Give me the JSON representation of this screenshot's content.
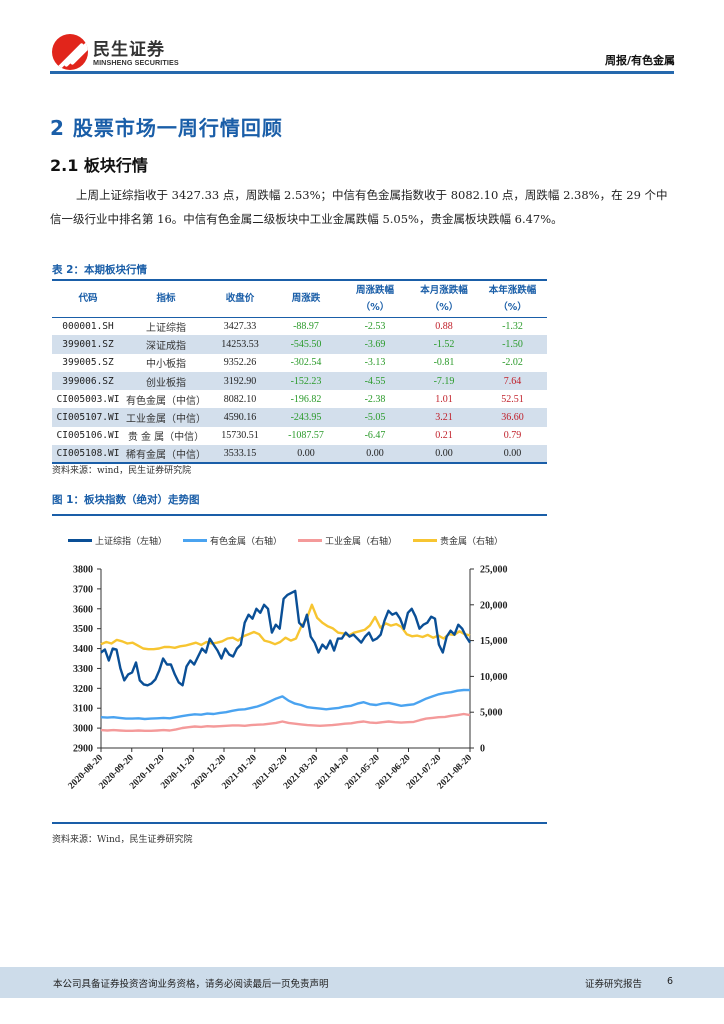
{
  "header": {
    "logo_cn": "民生证券",
    "logo_en": "MINSHENG SECURITIES",
    "right_label": "周报/有色金属"
  },
  "section": {
    "h1": "2 股票市场一周行情回顾",
    "h2": "2.1 板块行情",
    "paragraph": "上周上证综指收于 3427.33 点，周跌幅 2.53%；中信有色金属指数收于 8082.10 点，周跌幅 2.38%，在 29 个中信一级行业中排名第 16。中信有色金属二级板块中工业金属跌幅 5.05%，贵金属板块跌幅 6.47%。"
  },
  "table": {
    "title": "表 2：本期板块行情",
    "headers": [
      "代码",
      "指标",
      "收盘价",
      "周涨跌",
      "周涨跌幅\n（%）",
      "本月涨跌幅\n（%）",
      "本年涨跌幅\n（%）"
    ],
    "rows": [
      {
        "code": "000001.SH",
        "name": "上证综指",
        "close": "3427.33",
        "wchg": "-88.97",
        "wpct": "-2.53",
        "mpct": "0.88",
        "ypct": "-1.32"
      },
      {
        "code": "399001.SZ",
        "name": "深证成指",
        "close": "14253.53",
        "wchg": "-545.50",
        "wpct": "-3.69",
        "mpct": "-1.52",
        "ypct": "-1.50"
      },
      {
        "code": "399005.SZ",
        "name": "中小板指",
        "close": "9352.26",
        "wchg": "-302.54",
        "wpct": "-3.13",
        "mpct": "-0.81",
        "ypct": "-2.02"
      },
      {
        "code": "399006.SZ",
        "name": "创业板指",
        "close": "3192.90",
        "wchg": "-152.23",
        "wpct": "-4.55",
        "mpct": "-7.19",
        "ypct": "7.64"
      },
      {
        "code": "CI005003.WI",
        "name": "有色金属（中信）",
        "close": "8082.10",
        "wchg": "-196.82",
        "wpct": "-2.38",
        "mpct": "1.01",
        "ypct": "52.51"
      },
      {
        "code": "CI005107.WI",
        "name": "工业金属（中信）",
        "close": "4590.16",
        "wchg": "-243.95",
        "wpct": "-5.05",
        "mpct": "3.21",
        "ypct": "36.60"
      },
      {
        "code": "CI005106.WI",
        "name": "贵 金 属（中信）",
        "close": "15730.51",
        "wchg": "-1087.57",
        "wpct": "-6.47",
        "mpct": "0.21",
        "ypct": "0.79"
      },
      {
        "code": "CI005108.WI",
        "name": "稀有金属（中信）",
        "close": "3533.15",
        "wchg": "0.00",
        "wpct": "0.00",
        "mpct": "0.00",
        "ypct": "0.00"
      }
    ],
    "source": "资料来源：wind，民生证券研究院"
  },
  "figure": {
    "title": "图 1：板块指数（绝对）走势图",
    "source": "资料来源：Wind，民生证券研究院"
  },
  "chart_data": {
    "type": "line",
    "title": "板块指数（绝对）走势图",
    "x_ticks": [
      "2020-08-20",
      "2020-09-20",
      "2020-10-20",
      "2020-11-20",
      "2020-12-20",
      "2021-01-20",
      "2021-02-20",
      "2021-03-20",
      "2021-04-20",
      "2021-05-20",
      "2021-06-20",
      "2021-07-20",
      "2021-08-20"
    ],
    "y_left": {
      "label": "上证综指（左轴）",
      "range": [
        2900,
        3800
      ],
      "ticks": [
        2900,
        3000,
        3100,
        3200,
        3300,
        3400,
        3500,
        3600,
        3700,
        3800
      ]
    },
    "y_right": {
      "label": "右轴",
      "range": [
        0,
        25000
      ],
      "ticks": [
        "0",
        "5,000",
        "10,000",
        "15,000",
        "20,000",
        "25,000"
      ]
    },
    "legend_position": "top",
    "grid": false,
    "series": [
      {
        "name": "上证综指（左轴）",
        "axis": "left",
        "color": "#0a4f96",
        "values": [
          3380,
          3395,
          3340,
          3400,
          3395,
          3300,
          3240,
          3270,
          3280,
          3330,
          3240,
          3220,
          3215,
          3225,
          3245,
          3290,
          3350,
          3320,
          3320,
          3270,
          3230,
          3215,
          3310,
          3340,
          3320,
          3360,
          3400,
          3380,
          3450,
          3420,
          3390,
          3350,
          3400,
          3370,
          3360,
          3400,
          3420,
          3530,
          3570,
          3550,
          3600,
          3580,
          3620,
          3600,
          3480,
          3520,
          3500,
          3650,
          3670,
          3680,
          3690,
          3530,
          3510,
          3570,
          3460,
          3430,
          3380,
          3420,
          3400,
          3440,
          3390,
          3450,
          3450,
          3480,
          3460,
          3470,
          3450,
          3430,
          3460,
          3480,
          3440,
          3450,
          3470,
          3540,
          3590,
          3570,
          3580,
          3550,
          3500,
          3580,
          3600,
          3560,
          3500,
          3520,
          3530,
          3560,
          3550,
          3420,
          3380,
          3460,
          3490,
          3470,
          3520,
          3500,
          3460,
          3430
        ]
      },
      {
        "name": "有色金属（右轴）",
        "axis": "right",
        "color": "#4aa3f0",
        "values": [
          4300,
          4250,
          4300,
          4200,
          4100,
          4100,
          4150,
          4050,
          4100,
          4150,
          4200,
          4150,
          4300,
          4450,
          4600,
          4700,
          4650,
          4800,
          4750,
          4900,
          5000,
          5200,
          5350,
          5400,
          5600,
          5800,
          6100,
          6500,
          6900,
          7200,
          6600,
          6200,
          6000,
          5700,
          5600,
          5500,
          5400,
          5500,
          5600,
          5800,
          5900,
          6200,
          6400,
          6100,
          6000,
          6200,
          6300,
          6100,
          5900,
          6000,
          6100,
          6500,
          6900,
          7200,
          7500,
          7700,
          7800,
          8000,
          8100,
          8080
        ]
      },
      {
        "name": "工业金属（右轴）",
        "axis": "right",
        "color": "#f49a9a",
        "values": [
          2500,
          2450,
          2500,
          2450,
          2400,
          2400,
          2450,
          2400,
          2400,
          2450,
          2500,
          2450,
          2600,
          2800,
          2900,
          3000,
          2950,
          3050,
          3000,
          3050,
          3100,
          3150,
          3150,
          3100,
          3200,
          3250,
          3300,
          3400,
          3500,
          3700,
          3500,
          3400,
          3300,
          3200,
          3150,
          3100,
          3150,
          3200,
          3300,
          3400,
          3450,
          3600,
          3700,
          3550,
          3500,
          3600,
          3700,
          3600,
          3550,
          3600,
          3650,
          3900,
          4100,
          4200,
          4300,
          4350,
          4500,
          4600,
          4750,
          4590
        ]
      },
      {
        "name": "贵金属（右轴）",
        "axis": "right",
        "color": "#f7c531",
        "values": [
          14500,
          14800,
          14600,
          15100,
          14900,
          14600,
          14700,
          14300,
          13900,
          13800,
          13800,
          13900,
          14100,
          14100,
          14000,
          14200,
          14300,
          14500,
          14700,
          14400,
          14800,
          14600,
          14700,
          14900,
          15300,
          15400,
          15000,
          15600,
          15900,
          16200,
          15900,
          15000,
          14800,
          14500,
          14800,
          15400,
          15000,
          15300,
          17000,
          18000,
          20000,
          18200,
          17500,
          17000,
          16700,
          16100,
          16000,
          15700,
          16100,
          16300,
          16500,
          17100,
          18300,
          16800,
          17400,
          17100,
          17300,
          16900,
          15900,
          15600,
          15700,
          15500,
          15800,
          15400,
          15700,
          15300,
          15900,
          15800,
          16300,
          15900,
          15730
        ]
      }
    ]
  },
  "footer": {
    "disclaimer": "本公司具备证券投资咨询业务资格，请务必阅读最后一页免责声明",
    "report_type": "证券研究报告",
    "page": "6"
  }
}
